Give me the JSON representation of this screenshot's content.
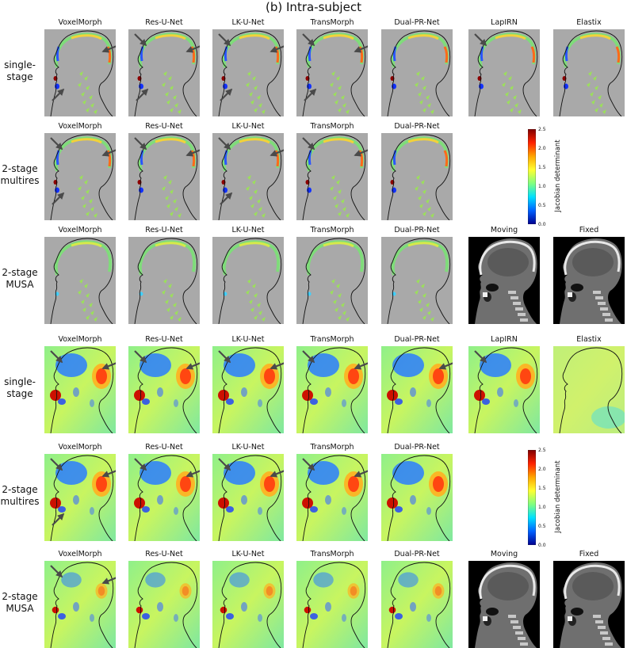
{
  "figure": {
    "title": "(b) Intra-subject"
  },
  "row_labels": [
    "single-\nstage",
    "2-stage\nmultires",
    "2-stage\nMUSA",
    "single-\nstage",
    "2-stage\nmultires",
    "2-stage\nMUSA"
  ],
  "sections": [
    {
      "name": "warped-masked",
      "rows": [
        [
          "VoxelMorph",
          "Res-U-Net",
          "LK-U-Net",
          "TransMorph",
          "Dual-PR-Net",
          "LapIRN",
          "Elastix"
        ],
        [
          "VoxelMorph",
          "Res-U-Net",
          "LK-U-Net",
          "TransMorph",
          "Dual-PR-Net"
        ],
        [
          "VoxelMorph",
          "Res-U-Net",
          "LK-U-Net",
          "TransMorph",
          "Dual-PR-Net",
          "Moving",
          "Fixed"
        ]
      ]
    },
    {
      "name": "jacobian-full",
      "rows": [
        [
          "VoxelMorph",
          "Res-U-Net",
          "LK-U-Net",
          "TransMorph",
          "Dual-PR-Net",
          "LapIRN",
          "Elastix"
        ],
        [
          "VoxelMorph",
          "Res-U-Net",
          "LK-U-Net",
          "TransMorph",
          "Dual-PR-Net"
        ],
        [
          "VoxelMorph",
          "Res-U-Net",
          "LK-U-Net",
          "TransMorph",
          "Dual-PR-Net",
          "Moving",
          "Fixed"
        ]
      ]
    }
  ],
  "colorbar": {
    "label": "Jacobian determinant",
    "ticks": [
      "2.5",
      "2.0",
      "1.5",
      "1.0",
      "0.5",
      "0.0"
    ],
    "colormap": [
      "#7f0000",
      "#ff2000",
      "#ffa500",
      "#ffff30",
      "#80ff80",
      "#00e0ff",
      "#0060ff",
      "#00008f"
    ]
  },
  "colors": {
    "panel_gray": "#a9a9a9",
    "arrow": "#4a4a4a",
    "outline": "#111111"
  }
}
